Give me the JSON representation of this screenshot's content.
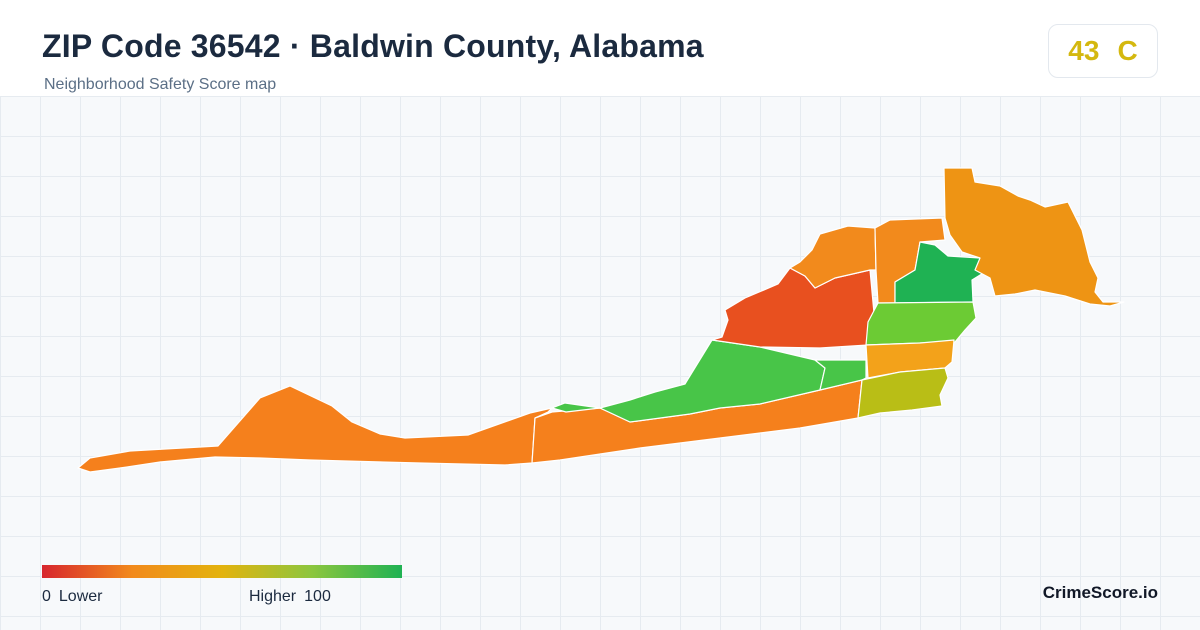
{
  "header": {
    "title": "ZIP Code 36542 · Baldwin County, Alabama",
    "subtitle": "Neighborhood Safety Score map"
  },
  "score": {
    "value": "43",
    "grade": "C",
    "color": "#d4b80f"
  },
  "map": {
    "regions": [
      {
        "name": "west-peninsula",
        "color": "#f5801c"
      },
      {
        "name": "central-beach",
        "color": "#f5801c"
      },
      {
        "name": "lagoon-green",
        "color": "#48c548"
      },
      {
        "name": "north-west-red",
        "color": "#e8501f"
      },
      {
        "name": "north-orange",
        "color": "#f28a1c"
      },
      {
        "name": "north-middle-orange",
        "color": "#f28a1c"
      },
      {
        "name": "north-green",
        "color": "#1fb253"
      },
      {
        "name": "northeast-orange",
        "color": "#ee9414"
      },
      {
        "name": "east-green",
        "color": "#6ccb34"
      },
      {
        "name": "east-orange",
        "color": "#f3a21a"
      },
      {
        "name": "east-green-small",
        "color": "#48c548"
      },
      {
        "name": "east-yellow",
        "color": "#b9be16"
      }
    ]
  },
  "legend": {
    "min_number": "0",
    "min_label": "Lower",
    "max_label": "Higher",
    "max_number": "100",
    "colors": [
      "#d7262e",
      "#f28a1c",
      "#e3b30e",
      "#8cc63e",
      "#1fb253"
    ]
  },
  "brand": "CrimeScore.io"
}
